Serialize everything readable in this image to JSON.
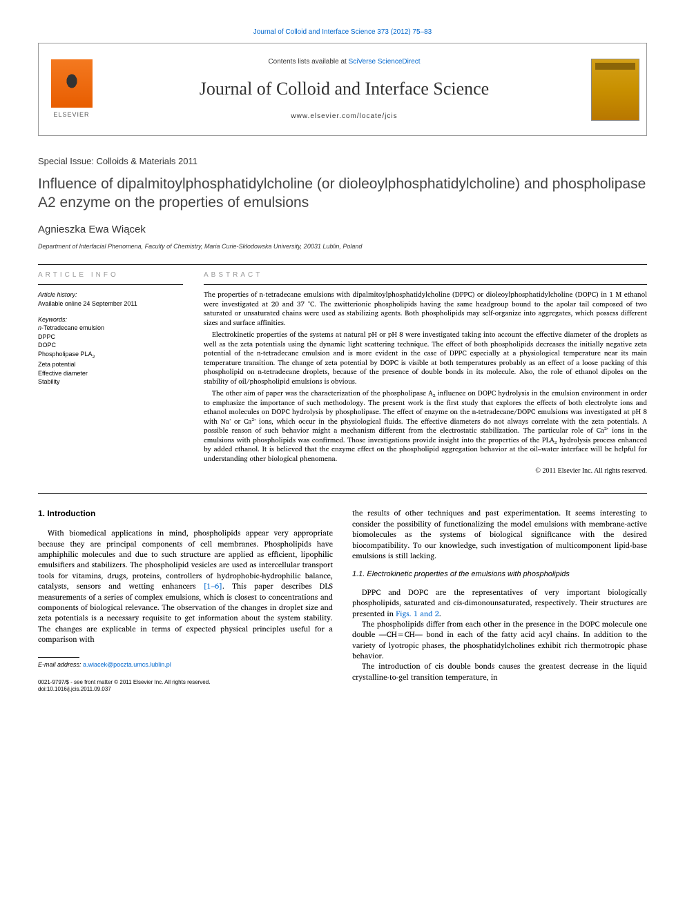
{
  "top_link": "Journal of Colloid and Interface Science 373 (2012) 75–83",
  "header": {
    "contents_prefix": "Contents lists available at ",
    "contents_link": "SciVerse ScienceDirect",
    "journal_title": "Journal of Colloid and Interface Science",
    "journal_url": "www.elsevier.com/locate/jcis",
    "publisher": "ELSEVIER"
  },
  "special_issue": "Special Issue: Colloids & Materials 2011",
  "title": "Influence of dipalmitoylphosphatidylcholine (or dioleoylphosphatidylcholine) and phospholipase A2 enzyme on the properties of emulsions",
  "author": "Agnieszka Ewa Wiącek",
  "affiliation": "Department of Interfacial Phenomena, Faculty of Chemistry, Maria Curie-Skłodowska University, 20031 Lublin, Poland",
  "article_info": {
    "heading": "ARTICLE INFO",
    "history_label": "Article history:",
    "history_text": "Available online 24 September 2011",
    "keywords_label": "Keywords:",
    "keywords": [
      "n-Tetradecane emulsion",
      "DPPC",
      "DOPC",
      "Phospholipase PLA₂",
      "Zeta potential",
      "Effective diameter",
      "Stability"
    ]
  },
  "abstract": {
    "heading": "ABSTRACT",
    "paragraphs": [
      "The properties of n-tetradecane emulsions with dipalmitoylphosphatidylcholine (DPPC) or dioleoylphosphatidylcholine (DOPC) in 1 M ethanol were investigated at 20 and 37 °C. The zwitterionic phospholipids having the same headgroup bound to the apolar tail composed of two saturated or unsaturated chains were used as stabilizing agents. Both phospholipids may self-organize into aggregates, which possess different sizes and surface affinities.",
      "Electrokinetic properties of the systems at natural pH or pH 8 were investigated taking into account the effective diameter of the droplets as well as the zeta potentials using the dynamic light scattering technique. The effect of both phospholipids decreases the initially negative zeta potential of the n-tetradecane emulsion and is more evident in the case of DPPC especially at a physiological temperature near its main temperature transition. The change of zeta potential by DOPC is visible at both temperatures probably as an effect of a loose packing of this phospholipid on n-tetradecane droplets, because of the presence of double bonds in its molecule. Also, the role of ethanol dipoles on the stability of oil/phospholipid emulsions is obvious.",
      "The other aim of paper was the characterization of the phospholipase A₂ influence on DOPC hydrolysis in the emulsion environment in order to emphasize the importance of such methodology. The present work is the first study that explores the effects of both electrolyte ions and ethanol molecules on DOPC hydrolysis by phospholipase. The effect of enzyme on the n-tetradecane/DOPC emulsions was investigated at pH 8 with Na⁺ or Ca²⁺ ions, which occur in the physiological fluids. The effective diameters do not always correlate with the zeta potentials. A possible reason of such behavior might a mechanism different from the electrostatic stabilization. The particular role of Ca²⁺ ions in the emulsions with phospholipids was confirmed. Those investigations provide insight into the properties of the PLA₂ hydrolysis process enhanced by added ethanol. It is believed that the enzyme effect on the phospholipid aggregation behavior at the oil–water interface will be helpful for understanding other biological phenomena."
    ],
    "copyright": "© 2011 Elsevier Inc. All rights reserved."
  },
  "body": {
    "section1_heading": "1. Introduction",
    "col1_p1_a": "With biomedical applications in mind, phospholipids appear very appropriate because they are principal components of cell membranes. Phospholipids have amphiphilic molecules and due to such structure are applied as efficient, lipophilic emulsifiers and stabilizers. The phospholipid vesicles are used as intercellular transport tools for vitamins, drugs, proteins, controllers of hydrophobic-hydrophilic balance, catalysts, sensors and wetting enhancers ",
    "col1_p1_ref": "[1–6]",
    "col1_p1_b": ". This paper describes DLS measurements of a series of complex emulsions, which is closest to concentrations and components of biological relevance. The observation of the changes in droplet size and zeta potentials is a necessary requisite to get information about the system stability. The changes are explicable in terms of expected physical principles useful for a comparison with",
    "col2_p1": "the results of other techniques and past experimentation. It seems interesting to consider the possibility of functionalizing the model emulsions with membrane-active biomolecules as the systems of biological significance with the desired biocompatibility. To our knowledge, such investigation of multicomponent lipid-base emulsions is still lacking.",
    "subsection_heading": "1.1. Electrokinetic properties of the emulsions with phospholipids",
    "col2_p2_a": "DPPC and DOPC are the representatives of very important biologically phospholipids, saturated and cis-dimonounsaturated, respectively. Their structures are presented in ",
    "col2_p2_ref": "Figs. 1 and 2",
    "col2_p2_b": ".",
    "col2_p3": "The phospholipids differ from each other in the presence in the DOPC molecule one double —CH=CH— bond in each of the fatty acid acyl chains. In addition to the variety of lyotropic phases, the phosphatidylcholines exhibit rich thermotropic phase behavior.",
    "col2_p4": "The introduction of cis double bonds causes the greatest decrease in the liquid crystalline-to-gel transition temperature, in"
  },
  "footnote": {
    "label": "E-mail address: ",
    "email": "a.wiacek@poczta.umcs.lublin.pl"
  },
  "footer": {
    "line1": "0021-9797/$ - see front matter © 2011 Elsevier Inc. All rights reserved.",
    "line2": "doi:10.1016/j.jcis.2011.09.037"
  },
  "colors": {
    "link": "#0066cc",
    "text": "#000000",
    "heading_gray": "#999999",
    "elsevier_orange": "#f47920",
    "cover_gold": "#d4a017"
  }
}
